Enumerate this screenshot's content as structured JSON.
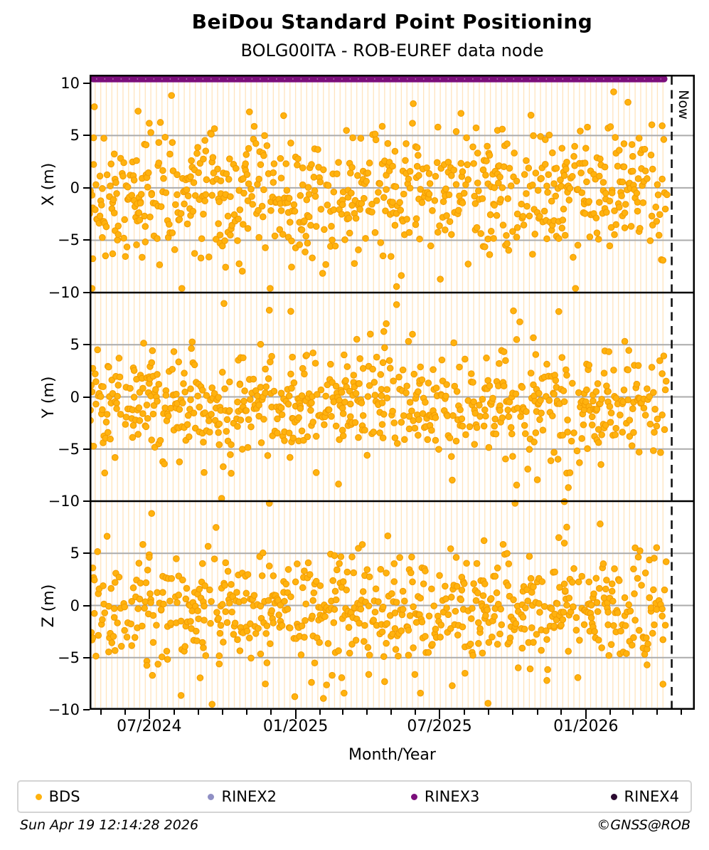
{
  "legend": {
    "items": [
      {
        "label": "BDS",
        "color": "#FFB20E"
      },
      {
        "label": "RINEX2",
        "color": "#8F8FC4"
      },
      {
        "label": "RINEX3",
        "color": "#7B0E7B"
      },
      {
        "label": "RINEX4",
        "color": "#2B0A30"
      }
    ],
    "item_left_percents": [
      2.5,
      28.2,
      58.4,
      88.1
    ]
  },
  "footer": {
    "timestamp": "Sun Apr 19 12:14:28 2026",
    "copyright": "©GNSS@ROB"
  },
  "chart_data": {
    "type": "scatter",
    "title": "BeiDou Standard Point Positioning",
    "subtitle": "BOLG00ITA - ROB-EUREF data node",
    "xlabel": "Month/Year",
    "grid": true,
    "legend_position": "bottom",
    "x_axis": {
      "start_date": "2024-04-17",
      "end_date": "2026-05-17",
      "total_days": 761,
      "major_ticks": [
        {
          "day": 75,
          "label": "07/2024"
        },
        {
          "day": 259,
          "label": "01/2025"
        },
        {
          "day": 440,
          "label": "07/2025"
        },
        {
          "day": 624,
          "label": "01/2026"
        }
      ],
      "minor_tick_days": [
        14,
        45,
        75,
        106,
        137,
        167,
        198,
        228,
        259,
        290,
        318,
        349,
        379,
        410,
        440,
        471,
        502,
        532,
        563,
        593,
        624,
        655,
        683,
        714,
        744
      ]
    },
    "now_line": {
      "label": "Now",
      "day": 732
    },
    "panels": [
      {
        "id": "X",
        "ylabel": "X (m)",
        "ylim": [
          -10,
          10.8
        ],
        "yticks": [
          {
            "value": 10,
            "label": "10"
          },
          {
            "value": 5,
            "label": "5"
          },
          {
            "value": 0,
            "label": "0"
          },
          {
            "value": -5,
            "label": "−5"
          },
          {
            "value": -10,
            "label": "−10"
          }
        ],
        "gridlines": [
          5,
          0,
          -5
        ],
        "rinex3_band": {
          "series": "RINEX3",
          "value": 10.4,
          "day_start": 1,
          "day_end": 726,
          "color": "#7B0E7B"
        },
        "scatter": {
          "series": "BDS",
          "color": "#FFB20E",
          "edge_color": "#F29C00",
          "seed": 101,
          "day_start": 0,
          "day_end": 726,
          "p_point": 0.8,
          "p_second_point": 0.25,
          "mean": -0.4,
          "std": 3.0,
          "outlier_frac": 0.15,
          "outlier_std": 4.5,
          "clip": [
            -9.6,
            9.6
          ]
        }
      },
      {
        "id": "Y",
        "ylabel": "Y (m)",
        "ylim": [
          -10,
          10
        ],
        "yticks": [
          {
            "value": 10,
            "label": null
          },
          {
            "value": 5,
            "label": "5"
          },
          {
            "value": 0,
            "label": "0"
          },
          {
            "value": -5,
            "label": "−5"
          },
          {
            "value": -10,
            "label": "−10"
          }
        ],
        "gridlines": [
          5,
          0,
          -5
        ],
        "rinex3_band": null,
        "scatter": {
          "series": "BDS",
          "color": "#FFB20E",
          "edge_color": "#F29C00",
          "seed": 202,
          "day_start": 0,
          "day_end": 726,
          "p_point": 0.8,
          "p_second_point": 0.25,
          "mean": -0.8,
          "std": 2.2,
          "outlier_frac": 0.15,
          "outlier_std": 4.2,
          "clip": [
            -10.2,
            9.3
          ]
        }
      },
      {
        "id": "Z",
        "ylabel": "Z (m)",
        "ylim": [
          -10,
          10
        ],
        "yticks": [
          {
            "value": 10,
            "label": null
          },
          {
            "value": 5,
            "label": "5"
          },
          {
            "value": 0,
            "label": "0"
          },
          {
            "value": -5,
            "label": "−5"
          },
          {
            "value": -10,
            "label": "−10"
          }
        ],
        "gridlines": [
          5,
          0,
          -5
        ],
        "rinex3_band": null,
        "scatter": {
          "series": "BDS",
          "color": "#FFB20E",
          "edge_color": "#F29C00",
          "seed": 303,
          "day_start": 0,
          "day_end": 726,
          "p_point": 0.8,
          "p_second_point": 0.25,
          "mean": -0.5,
          "std": 2.6,
          "outlier_frac": 0.14,
          "outlier_std": 4.2,
          "clip": [
            -9.9,
            9.4
          ]
        }
      }
    ],
    "styles": {
      "grid_color": "#ABABAB",
      "stripe_color": "rgba(255,196,110,0.45)",
      "frame_color": "#000000",
      "now_line_color": "#111111"
    }
  }
}
